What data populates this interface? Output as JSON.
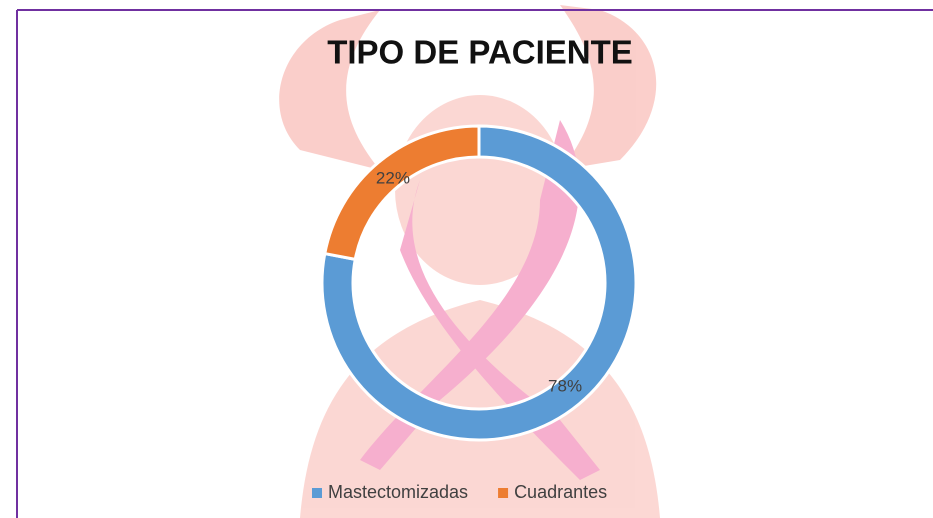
{
  "chart_data": {
    "type": "donut",
    "title": "TIPO DE PACIENTE",
    "categories": [
      "Mastectomizadas",
      "Cuadrantes"
    ],
    "values": [
      78,
      22
    ],
    "value_labels": [
      "78%",
      "22%"
    ],
    "colors": [
      "#5b9bd5",
      "#ed7d31"
    ],
    "legend": "bottom"
  }
}
